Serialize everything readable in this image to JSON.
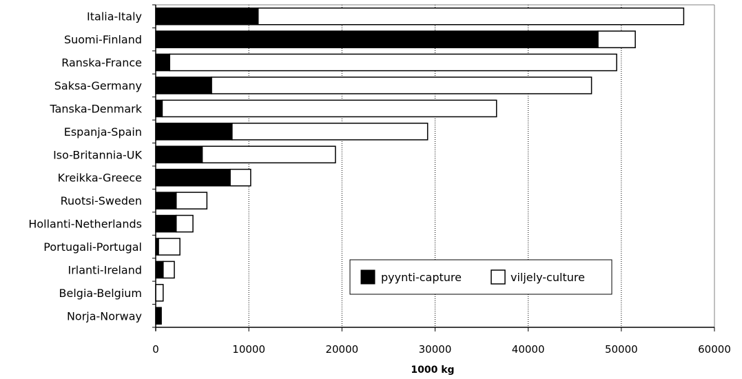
{
  "chart_data": {
    "type": "bar",
    "orientation": "horizontal",
    "stacked": true,
    "title": "",
    "xlabel": "1000 kg",
    "ylabel": "",
    "xlim": [
      0,
      60000
    ],
    "xticks": [
      0,
      10000,
      20000,
      30000,
      40000,
      50000,
      60000
    ],
    "grid": "vertical dotted",
    "legend_position": "bottom-right",
    "categories": [
      "Italia-Italy",
      "Suomi-Finland",
      "Ranska-France",
      "Saksa-Germany",
      "Tanska-Denmark",
      "Espanja-Spain",
      "Iso-Britannia-UK",
      "Kreikka-Greece",
      "Ruotsi-Sweden",
      "Hollanti-Netherlands",
      "Portugali-Portugal",
      "Irlanti-Ireland",
      "Belgia-Belgium",
      "Norja-Norway"
    ],
    "series": [
      {
        "name": "pyynti-capture",
        "color": "#000000",
        "values": [
          11000,
          47500,
          1500,
          6000,
          700,
          8200,
          5000,
          8000,
          2200,
          2200,
          300,
          800,
          0,
          600
        ]
      },
      {
        "name": "viljely-culture",
        "color": "#ffffff",
        "values": [
          45700,
          4000,
          48000,
          40800,
          35900,
          21000,
          14300,
          2200,
          3300,
          1800,
          2300,
          1200,
          800,
          0
        ]
      }
    ]
  }
}
